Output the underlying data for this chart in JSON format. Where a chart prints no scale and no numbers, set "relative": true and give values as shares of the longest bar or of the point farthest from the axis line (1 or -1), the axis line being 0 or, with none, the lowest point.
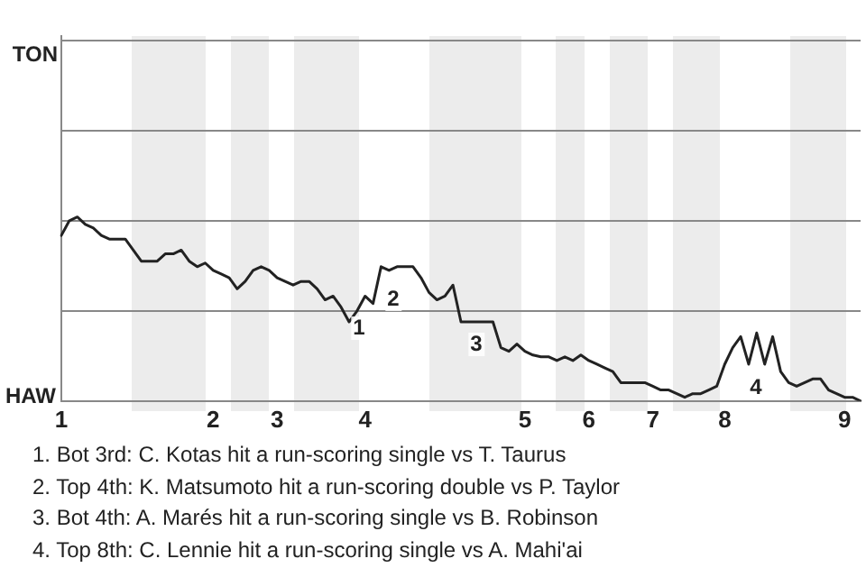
{
  "chart_data": {
    "type": "line",
    "relative": true,
    "categories": [
      "1",
      null,
      null,
      null,
      null,
      null,
      null,
      null,
      null,
      null,
      null,
      null,
      null,
      null,
      null,
      null,
      null,
      null,
      null,
      "2",
      null,
      null,
      null,
      null,
      null,
      null,
      null,
      "3",
      null,
      null,
      null,
      null,
      null,
      null,
      null,
      null,
      null,
      null,
      "4",
      null,
      null,
      null,
      null,
      null,
      null,
      null,
      null,
      null,
      null,
      null,
      null,
      null,
      null,
      null,
      null,
      null,
      null,
      null,
      "5",
      null,
      null,
      null,
      null,
      null,
      null,
      null,
      "6",
      null,
      null,
      null,
      null,
      null,
      null,
      null,
      "7",
      null,
      null,
      null,
      null,
      null,
      null,
      null,
      null,
      "8",
      null,
      null,
      null,
      null,
      null,
      null,
      null,
      null,
      null,
      null,
      null,
      null,
      null,
      null,
      "9",
      null,
      null
    ],
    "series": [
      {
        "color": "#222222",
        "values": [
          0.9,
          0.98,
          1,
          0.96,
          0.94,
          0.9,
          0.88,
          0.88,
          0.88,
          0.82,
          0.76,
          0.76,
          0.76,
          0.8,
          0.8,
          0.82,
          0.76,
          0.73,
          0.75,
          0.71,
          0.69,
          0.67,
          0.61,
          0.65,
          0.71,
          0.73,
          0.71,
          0.67,
          0.65,
          0.63,
          0.65,
          0.65,
          0.61,
          0.55,
          0.57,
          0.51,
          0.43,
          0.49,
          0.57,
          0.53,
          0.73,
          0.71,
          0.73,
          0.73,
          0.73,
          0.67,
          0.59,
          0.55,
          0.57,
          0.63,
          0.43,
          0.43,
          0.43,
          0.43,
          0.43,
          0.29,
          0.27,
          0.31,
          0.27,
          0.25,
          0.24,
          0.24,
          0.22,
          0.24,
          0.22,
          0.25,
          0.22,
          0.2,
          0.18,
          0.16,
          0.1,
          0.1,
          0.1,
          0.1,
          0.08,
          0.06,
          0.06,
          0.04,
          0.02,
          0.04,
          0.04,
          0.06,
          0.08,
          0.2,
          0.29,
          0.35,
          0.2,
          0.37,
          0.2,
          0.35,
          0.16,
          0.1,
          0.08,
          0.1,
          0.12,
          0.12,
          0.06,
          0.04,
          0.02,
          0.02,
          0
        ]
      }
    ],
    "ref_lines": [
      {
        "axis": "y",
        "value": 0.49,
        "color": "#888888"
      },
      {
        "axis": "y",
        "value": 0.98,
        "color": "#888888"
      },
      {
        "axis": "y",
        "value": 1.47,
        "color": "#888888"
      },
      {
        "axis": "y",
        "value": 1.96,
        "label": "TON",
        "color": "#888888"
      }
    ],
    "marker": "none",
    "annotations": [
      "1",
      "2",
      "3",
      "4",
      "HAW",
      "1. Bot 3rd: C. Kotas hit a run-scoring single vs T. Taurus",
      "2. Top 4th: K. Matsumoto hit a run-scoring double vs P. Taylor",
      "3. Bot 4th: A. Marés hit a run-scoring single vs B. Robinson",
      "4. Top 8th: C. Lennie hit a run-scoring single vs A. Mahi'ai"
    ]
  }
}
